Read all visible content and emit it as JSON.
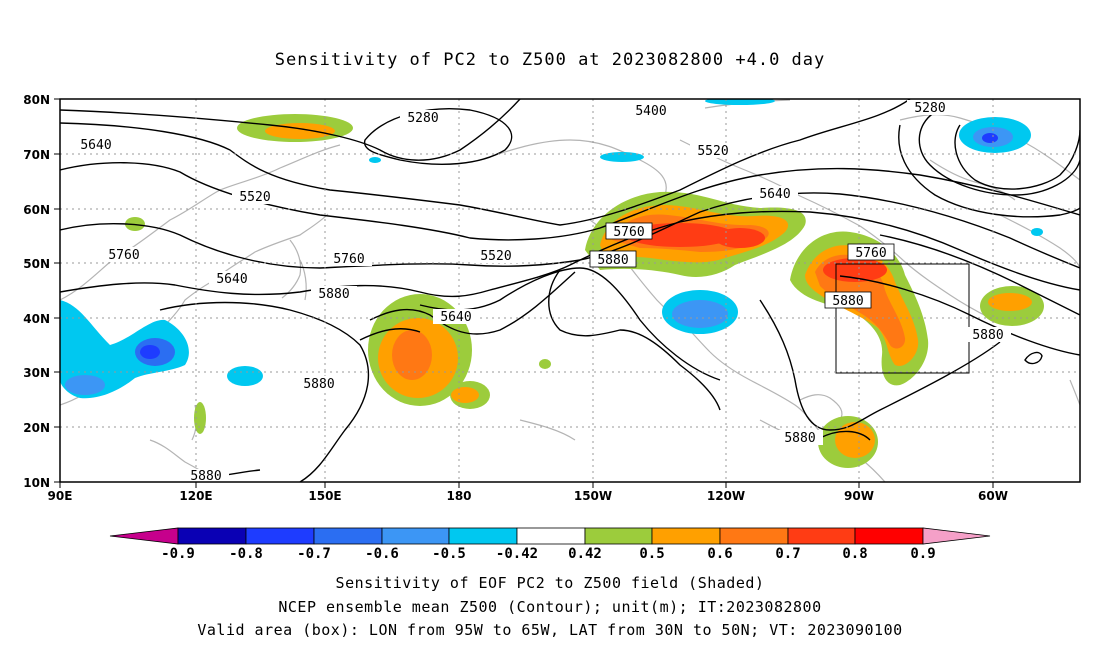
{
  "title": "Sensitivity of PC2 to Z500 at 2023082800 +4.0 day",
  "lon_ticks": [
    "90E",
    "120E",
    "150E",
    "180",
    "150W",
    "120W",
    "90W",
    "60W"
  ],
  "lat_ticks": [
    "80N",
    "70N",
    "60N",
    "50N",
    "40N",
    "30N",
    "20N",
    "10N"
  ],
  "contour_labels": [
    "5280",
    "5400",
    "5280",
    "5640",
    "5520",
    "5520",
    "5640",
    "5760",
    "5760",
    "5880",
    "5760",
    "5640",
    "5520",
    "5760",
    "5880",
    "5880",
    "5640",
    "5880",
    "5880",
    "5880",
    "5880"
  ],
  "colorbar": {
    "labels": [
      "-0.9",
      "-0.8",
      "-0.7",
      "-0.6",
      "-0.5",
      "-0.42",
      "0.42",
      "0.5",
      "0.6",
      "0.7",
      "0.8",
      "0.9"
    ],
    "colors": [
      "#c6008c",
      "#0a00b4",
      "#1e3cff",
      "#2b6ef2",
      "#3c96f5",
      "#00c8f0",
      "#ffffff",
      "#9ccc3c",
      "#ffa000",
      "#ff7814",
      "#ff3c14",
      "#ff0000",
      "#f5a0c8"
    ]
  },
  "notes": {
    "line1": "Sensitivity of EOF PC2 to Z500 field (Shaded)",
    "line2": "NCEP ensemble mean Z500 (Contour); unit(m); IT:2023082800",
    "line3": "Valid area (box): LON from 95W to 65W, LAT from 30N to 50N; VT: 2023090100"
  }
}
